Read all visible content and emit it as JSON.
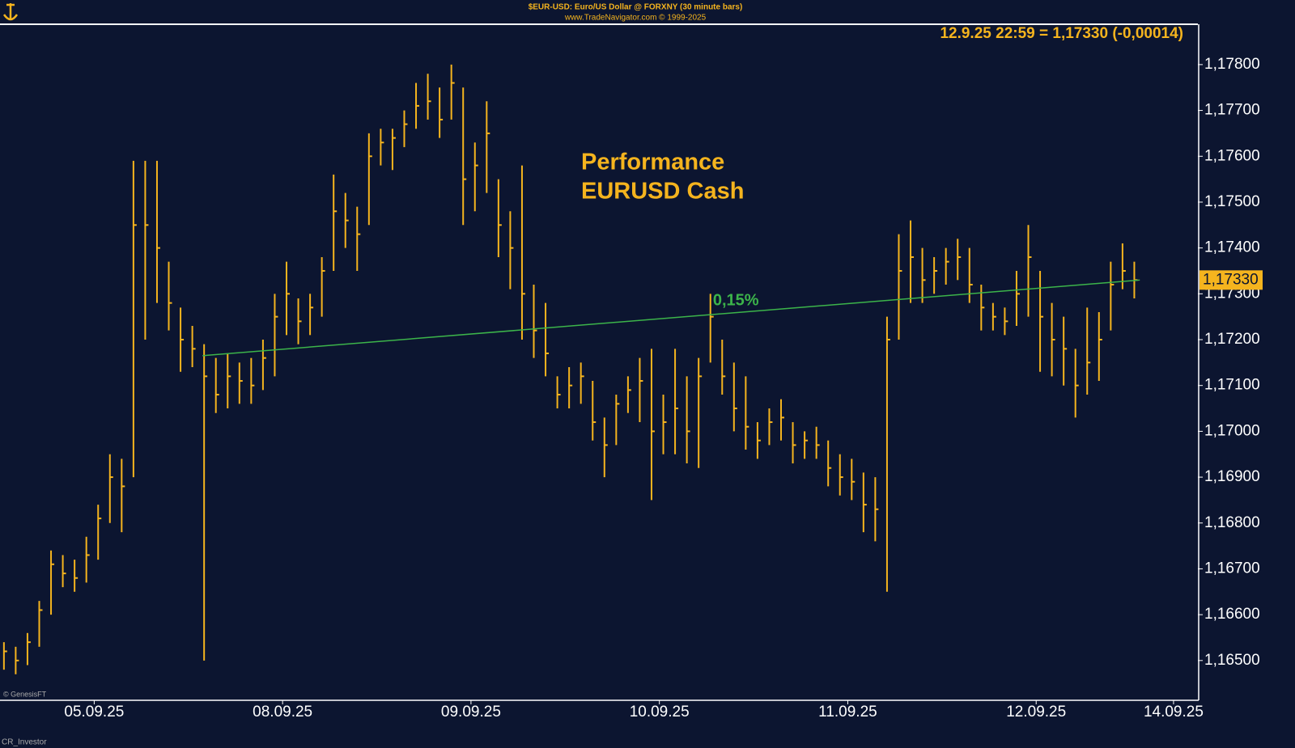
{
  "chart_data": {
    "type": "ohlc",
    "title": "$EUR-USD: Euro/US Dollar @ FORXNY  (30 minute bars)",
    "subtitle": "www.TradeNavigator.com © 1999-2025",
    "header": "12.9.25 22:59 = 1,17330 (-0,00014)",
    "annotation": [
      "Performance",
      "EURUSD Cash"
    ],
    "footnotes": [
      "© GenesisFT",
      "CR_Investor"
    ],
    "last_price": {
      "value": 1.1733,
      "label": "1,17330"
    },
    "color": "#f5b41e",
    "x": [
      0.5,
      2,
      3.5,
      5,
      6.5,
      8,
      9.5,
      11,
      12.5,
      14,
      15.5,
      17,
      18.5,
      20,
      21.5,
      23,
      24.5,
      26,
      27.5,
      29,
      30.5,
      32,
      33.5,
      35,
      36.5,
      38,
      39.5,
      41,
      42.5,
      44,
      45.5,
      47,
      48.5,
      50,
      51.5,
      53,
      54.5,
      56,
      57.5,
      59,
      60.5,
      62,
      63.5,
      65,
      66.5,
      68,
      69.5,
      71,
      72.5,
      74,
      75.5,
      77,
      78.5,
      80,
      81.5,
      83,
      84.5,
      86,
      87.5,
      89,
      90.5,
      92,
      93.5,
      95,
      96.5,
      98,
      99.5,
      101,
      102.5,
      104,
      105.5,
      107,
      108.5,
      110,
      111.5,
      113,
      114.5,
      116,
      117.5,
      119,
      120.5,
      122,
      123.5,
      125,
      126.5,
      128,
      129.5,
      131,
      132.5,
      134,
      135.5,
      137,
      138.5,
      140,
      141.5,
      143,
      144.5
    ],
    "high": [
      1.1654,
      1.1653,
      1.1656,
      1.1663,
      1.1674,
      1.1673,
      1.1672,
      1.1677,
      1.1684,
      1.1695,
      1.1694,
      1.1759,
      1.1759,
      1.1759,
      1.1737,
      1.1727,
      1.1723,
      1.1719,
      1.1716,
      1.1717,
      1.1715,
      1.1716,
      1.172,
      1.173,
      1.1737,
      1.1729,
      1.173,
      1.1738,
      1.1756,
      1.1752,
      1.1749,
      1.1765,
      1.1766,
      1.1766,
      1.177,
      1.1776,
      1.1778,
      1.1775,
      1.178,
      1.1775,
      1.1763,
      1.1772,
      1.1755,
      1.1748,
      1.1758,
      1.1732,
      1.1728,
      1.1712,
      1.1714,
      1.1715,
      1.1711,
      1.1703,
      1.1708,
      1.1712,
      1.1716,
      1.1718,
      1.1708,
      1.1718,
      1.1712,
      1.1716,
      1.173,
      1.172,
      1.1715,
      1.1712,
      1.1702,
      1.1705,
      1.1707,
      1.1702,
      1.17,
      1.1701,
      1.1698,
      1.1695,
      1.1694,
      1.1691,
      1.169,
      1.1725,
      1.1743,
      1.1746,
      1.174,
      1.1738,
      1.174,
      1.1742,
      1.174,
      1.1732,
      1.1728,
      1.1727,
      1.1735,
      1.1745,
      1.1735,
      1.1728,
      1.1725,
      1.1718,
      1.1727,
      1.1726,
      1.1737,
      1.1741,
      1.1737
    ],
    "low": [
      1.1648,
      1.1647,
      1.1649,
      1.1653,
      1.166,
      1.1666,
      1.1665,
      1.1667,
      1.1672,
      1.168,
      1.1678,
      1.169,
      1.172,
      1.1728,
      1.1722,
      1.1713,
      1.1714,
      1.165,
      1.1704,
      1.1705,
      1.1706,
      1.1706,
      1.1709,
      1.1712,
      1.1721,
      1.1719,
      1.1721,
      1.1725,
      1.1735,
      1.174,
      1.1735,
      1.1745,
      1.1758,
      1.1757,
      1.1762,
      1.1766,
      1.1768,
      1.1764,
      1.1768,
      1.1745,
      1.1748,
      1.1752,
      1.1738,
      1.1731,
      1.172,
      1.1716,
      1.1712,
      1.1705,
      1.1705,
      1.1706,
      1.1698,
      1.169,
      1.1697,
      1.1704,
      1.1702,
      1.1685,
      1.1695,
      1.1695,
      1.1693,
      1.1692,
      1.1715,
      1.1708,
      1.17,
      1.1696,
      1.1694,
      1.1697,
      1.1698,
      1.1693,
      1.1694,
      1.1694,
      1.1688,
      1.1686,
      1.1685,
      1.1678,
      1.1676,
      1.1665,
      1.172,
      1.1728,
      1.1728,
      1.173,
      1.1732,
      1.1733,
      1.1728,
      1.1722,
      1.1722,
      1.1721,
      1.1723,
      1.1725,
      1.1713,
      1.1712,
      1.171,
      1.1703,
      1.1708,
      1.1711,
      1.1722,
      1.1731,
      1.1729
    ],
    "close": [
      1.1652,
      1.165,
      1.1654,
      1.1661,
      1.1671,
      1.1669,
      1.1668,
      1.1673,
      1.1681,
      1.169,
      1.1688,
      1.1745,
      1.1745,
      1.174,
      1.1728,
      1.172,
      1.1718,
      1.1712,
      1.1708,
      1.1712,
      1.1711,
      1.171,
      1.1716,
      1.1725,
      1.173,
      1.1724,
      1.1727,
      1.1735,
      1.1748,
      1.1746,
      1.1743,
      1.176,
      1.1763,
      1.1764,
      1.1767,
      1.1771,
      1.1772,
      1.1768,
      1.1776,
      1.1755,
      1.1758,
      1.1765,
      1.1745,
      1.174,
      1.173,
      1.1722,
      1.1717,
      1.1708,
      1.171,
      1.1712,
      1.1702,
      1.1697,
      1.1706,
      1.1709,
      1.1711,
      1.17,
      1.1702,
      1.1705,
      1.17,
      1.1712,
      1.1725,
      1.1712,
      1.1705,
      1.1701,
      1.1698,
      1.1702,
      1.1703,
      1.1697,
      1.1698,
      1.1697,
      1.1692,
      1.169,
      1.1689,
      1.1684,
      1.1683,
      1.172,
      1.1735,
      1.1738,
      1.1733,
      1.1735,
      1.1737,
      1.1738,
      1.1732,
      1.1727,
      1.1725,
      1.1724,
      1.173,
      1.1738,
      1.1725,
      1.172,
      1.1718,
      1.171,
      1.1715,
      1.172,
      1.1732,
      1.1735,
      1.1733
    ],
    "trendline": {
      "x": [
        25.8,
        145.2
      ],
      "values": [
        1.17165,
        1.1733
      ],
      "color": "#3cb44a",
      "label": "0,15%"
    },
    "xlim": [
      0,
      152.6
    ],
    "xticks": [
      {
        "value": 12,
        "label": "05.09.25"
      },
      {
        "value": 36,
        "label": "08.09.25"
      },
      {
        "value": 60,
        "label": "09.09.25"
      },
      {
        "value": 84,
        "label": "10.09.25"
      },
      {
        "value": 108,
        "label": "11.09.25"
      },
      {
        "value": 132,
        "label": "12.09.25"
      },
      {
        "value": 149.5,
        "label": "14.09.25"
      }
    ],
    "ylim": [
      1.16415,
      1.17888
    ],
    "yticks": [
      {
        "value": 1.165,
        "label": "1,16500"
      },
      {
        "value": 1.166,
        "label": "1,16600"
      },
      {
        "value": 1.167,
        "label": "1,16700"
      },
      {
        "value": 1.168,
        "label": "1,16800"
      },
      {
        "value": 1.169,
        "label": "1,16900"
      },
      {
        "value": 1.17,
        "label": "1,17000"
      },
      {
        "value": 1.171,
        "label": "1,17100"
      },
      {
        "value": 1.172,
        "label": "1,17200"
      },
      {
        "value": 1.173,
        "label": "1,17300"
      },
      {
        "value": 1.174,
        "label": "1,17400"
      },
      {
        "value": 1.175,
        "label": "1,17500"
      },
      {
        "value": 1.176,
        "label": "1,17600"
      },
      {
        "value": 1.177,
        "label": "1,17700"
      },
      {
        "value": 1.178,
        "label": "1,17800"
      }
    ]
  }
}
